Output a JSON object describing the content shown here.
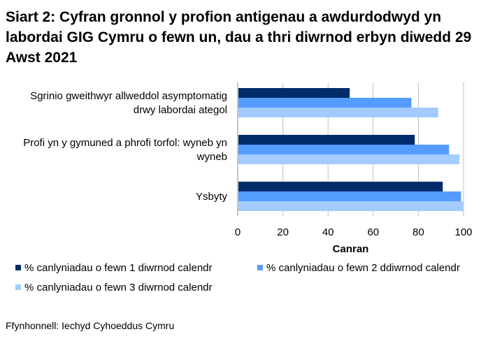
{
  "title": "Siart 2: Cyfran gronnol y profion antigenau a awdurdodwyd yn labordai GIG Cymru o fewn un, dau a thri diwrnod erbyn diwedd 29 Awst 2021",
  "source": "Ffynhonnell: Iechyd Cyhoeddus Cymru",
  "chart_data": {
    "type": "bar",
    "orientation": "horizontal",
    "categories": [
      [
        "Sgrinio gweithwyr allweddol asymptomatig",
        "drwy labordai ategol"
      ],
      [
        "Profi yn y gymuned a phrofi torfol: wyneb yn",
        "wyneb"
      ],
      [
        "Ysbyty"
      ]
    ],
    "series": [
      {
        "name": "% canlyniadau o fewn 1 diwrnod calendr",
        "color": "#002d6a",
        "values": [
          49.6,
          78.4,
          90.8
        ]
      },
      {
        "name": "% canlyniadau o fewn 2 ddiwrnod calendr",
        "color": "#559cff",
        "values": [
          76.9,
          93.6,
          98.9
        ]
      },
      {
        "name": "% canlyniadau o fewn 3 diwrnod calendr",
        "color": "#a3cbff",
        "values": [
          88.8,
          98.2,
          99.8
        ]
      }
    ],
    "xlabel": "Canran",
    "xlim": [
      0,
      100
    ],
    "xticks": [
      "0",
      "20",
      "40",
      "60",
      "80",
      "100"
    ],
    "grid": true,
    "legend": "bottom"
  }
}
